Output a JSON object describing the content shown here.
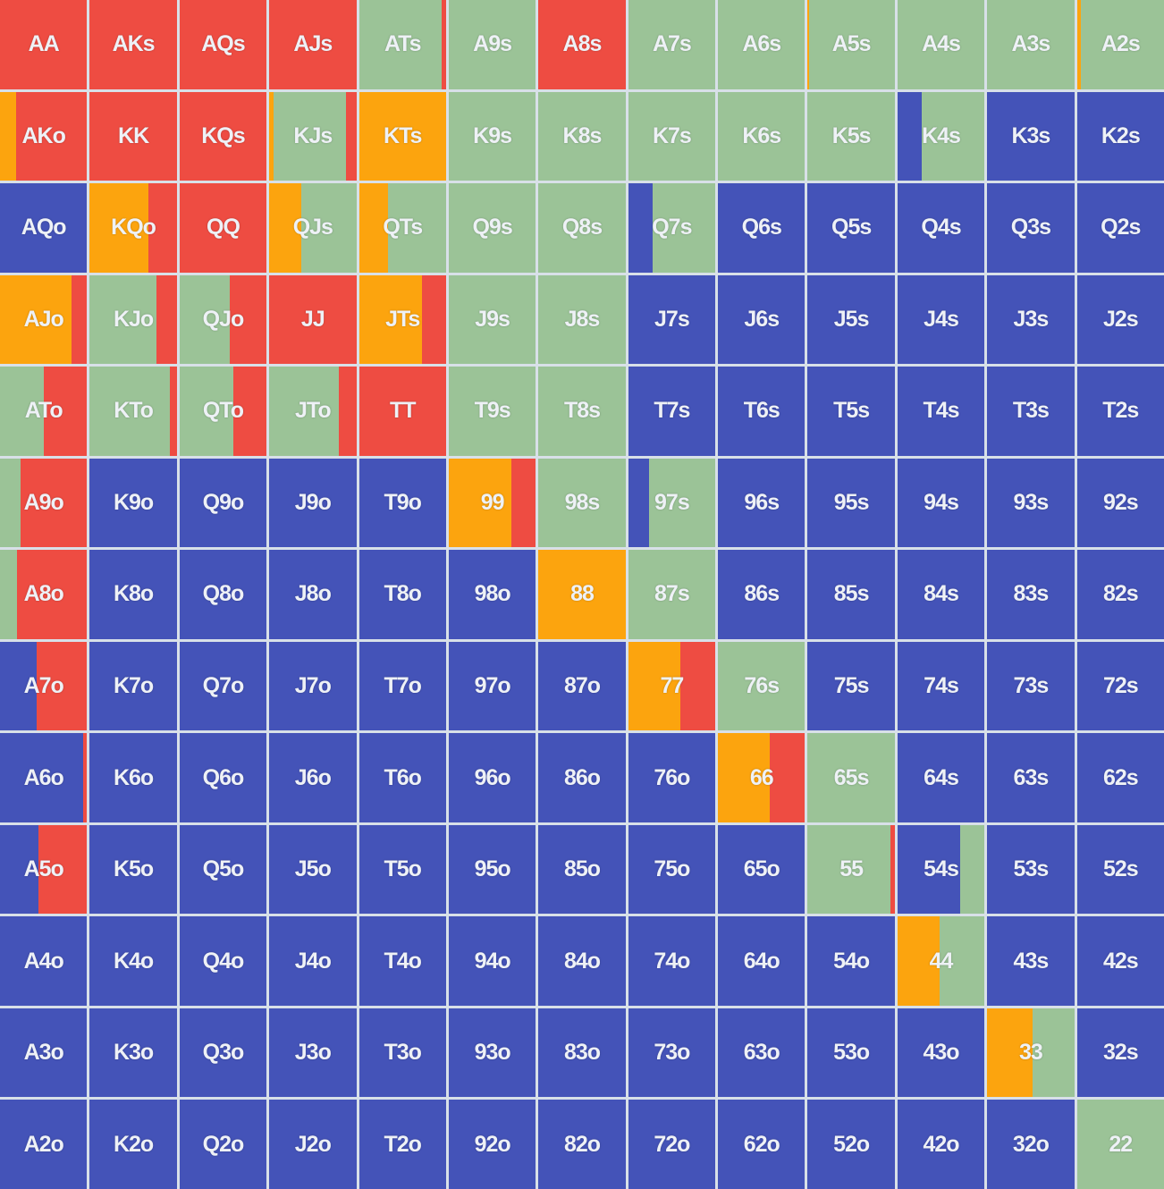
{
  "colors": {
    "raise": "#ee4c42",
    "call": "#9bc397",
    "threebet": "#fca40e",
    "fold": "#4453b8"
  },
  "hands": [
    [
      "AA",
      "AKs",
      "AQs",
      "AJs",
      "ATs",
      "A9s",
      "A8s",
      "A7s",
      "A6s",
      "A5s",
      "A4s",
      "A3s",
      "A2s"
    ],
    [
      "AKo",
      "KK",
      "KQs",
      "KJs",
      "KTs",
      "K9s",
      "K8s",
      "K7s",
      "K6s",
      "K5s",
      "K4s",
      "K3s",
      "K2s"
    ],
    [
      "AQo",
      "KQo",
      "QQ",
      "QJs",
      "QTs",
      "Q9s",
      "Q8s",
      "Q7s",
      "Q6s",
      "Q5s",
      "Q4s",
      "Q3s",
      "Q2s"
    ],
    [
      "AJo",
      "KJo",
      "QJo",
      "JJ",
      "JTs",
      "J9s",
      "J8s",
      "J7s",
      "J6s",
      "J5s",
      "J4s",
      "J3s",
      "J2s"
    ],
    [
      "ATo",
      "KTo",
      "QTo",
      "JTo",
      "TT",
      "T9s",
      "T8s",
      "T7s",
      "T6s",
      "T5s",
      "T4s",
      "T3s",
      "T2s"
    ],
    [
      "A9o",
      "K9o",
      "Q9o",
      "J9o",
      "T9o",
      "99",
      "98s",
      "97s",
      "96s",
      "95s",
      "94s",
      "93s",
      "92s"
    ],
    [
      "A8o",
      "K8o",
      "Q8o",
      "J8o",
      "T8o",
      "98o",
      "88",
      "87s",
      "86s",
      "85s",
      "84s",
      "83s",
      "82s"
    ],
    [
      "A7o",
      "K7o",
      "Q7o",
      "J7o",
      "T7o",
      "97o",
      "87o",
      "77",
      "76s",
      "75s",
      "74s",
      "73s",
      "72s"
    ],
    [
      "A6o",
      "K6o",
      "Q6o",
      "J6o",
      "T6o",
      "96o",
      "86o",
      "76o",
      "66",
      "65s",
      "64s",
      "63s",
      "62s"
    ],
    [
      "A5o",
      "K5o",
      "Q5o",
      "J5o",
      "T5o",
      "95o",
      "85o",
      "75o",
      "65o",
      "55",
      "54s",
      "53s",
      "52s"
    ],
    [
      "A4o",
      "K4o",
      "Q4o",
      "J4o",
      "T4o",
      "94o",
      "84o",
      "74o",
      "64o",
      "54o",
      "44",
      "43s",
      "42s"
    ],
    [
      "A3o",
      "K3o",
      "Q3o",
      "J3o",
      "T3o",
      "93o",
      "83o",
      "73o",
      "63o",
      "53o",
      "43o",
      "33",
      "32s"
    ],
    [
      "A2o",
      "K2o",
      "Q2o",
      "J2o",
      "T2o",
      "92o",
      "82o",
      "72o",
      "62o",
      "52o",
      "42o",
      "32o",
      "22"
    ]
  ],
  "mix": {
    "ATs": [
      [
        "call",
        0.95
      ],
      [
        "raise",
        0.05
      ]
    ],
    "A5s": [
      [
        "threebet",
        0.02
      ],
      [
        "call",
        0.98
      ]
    ],
    "A2s": [
      [
        "threebet",
        0.05
      ],
      [
        "call",
        0.95
      ]
    ],
    "AKo": [
      [
        "threebet",
        0.18
      ],
      [
        "raise",
        0.82
      ]
    ],
    "KJs": [
      [
        "threebet",
        0.05
      ],
      [
        "call",
        0.83
      ],
      [
        "raise",
        0.12
      ]
    ],
    "K4s": [
      [
        "fold",
        0.28
      ],
      [
        "call",
        0.72
      ]
    ],
    "QJs": [
      [
        "threebet",
        0.37
      ],
      [
        "call",
        0.63
      ]
    ],
    "QTs": [
      [
        "threebet",
        0.33
      ],
      [
        "call",
        0.67
      ]
    ],
    "Q7s": [
      [
        "fold",
        0.28
      ],
      [
        "call",
        0.72
      ]
    ],
    "KQo": [
      [
        "threebet",
        0.67
      ],
      [
        "raise",
        0.33
      ]
    ],
    "AJo": [
      [
        "threebet",
        0.82
      ],
      [
        "raise",
        0.18
      ]
    ],
    "KJo": [
      [
        "call",
        0.77
      ],
      [
        "raise",
        0.23
      ]
    ],
    "QJo": [
      [
        "call",
        0.58
      ],
      [
        "raise",
        0.42
      ]
    ],
    "JTs": [
      [
        "threebet",
        0.72
      ],
      [
        "raise",
        0.28
      ]
    ],
    "ATo": [
      [
        "call",
        0.5
      ],
      [
        "raise",
        0.5
      ]
    ],
    "KTo": [
      [
        "call",
        0.92
      ],
      [
        "raise",
        0.08
      ]
    ],
    "QTo": [
      [
        "call",
        0.62
      ],
      [
        "raise",
        0.38
      ]
    ],
    "JTo": [
      [
        "call",
        0.8
      ],
      [
        "raise",
        0.2
      ]
    ],
    "A9o": [
      [
        "call",
        0.24
      ],
      [
        "raise",
        0.76
      ]
    ],
    "99": [
      [
        "threebet",
        0.72
      ],
      [
        "raise",
        0.28
      ]
    ],
    "97s": [
      [
        "fold",
        0.24
      ],
      [
        "call",
        0.76
      ]
    ],
    "A8o": [
      [
        "call",
        0.2
      ],
      [
        "raise",
        0.8
      ]
    ],
    "A7o": [
      [
        "fold",
        0.42
      ],
      [
        "raise",
        0.58
      ]
    ],
    "77": [
      [
        "threebet",
        0.6
      ],
      [
        "raise",
        0.4
      ]
    ],
    "A6o": [
      [
        "fold",
        0.95
      ],
      [
        "raise",
        0.05
      ]
    ],
    "66": [
      [
        "threebet",
        0.6
      ],
      [
        "raise",
        0.4
      ]
    ],
    "A5o": [
      [
        "fold",
        0.44
      ],
      [
        "raise",
        0.56
      ]
    ],
    "55": [
      [
        "call",
        0.95
      ],
      [
        "raise",
        0.05
      ]
    ],
    "54s": [
      [
        "fold",
        0.72
      ],
      [
        "call",
        0.28
      ]
    ],
    "44": [
      [
        "threebet",
        0.48
      ],
      [
        "call",
        0.52
      ]
    ],
    "33": [
      [
        "threebet",
        0.52
      ],
      [
        "call",
        0.48
      ]
    ]
  },
  "solid_raise": [
    "AA",
    "AKs",
    "AQs",
    "AJs",
    "A8s",
    "KK",
    "KQs",
    "QQ",
    "JJ",
    "TT"
  ],
  "solid_threebet": [
    "KTs",
    "88"
  ],
  "solid_call": [
    "A9s",
    "A7s",
    "A6s",
    "A4s",
    "A3s",
    "K9s",
    "K8s",
    "K7s",
    "K6s",
    "K5s",
    "Q9s",
    "Q8s",
    "J9s",
    "J8s",
    "T9s",
    "T8s",
    "98s",
    "87s",
    "76s",
    "65s",
    "22"
  ]
}
